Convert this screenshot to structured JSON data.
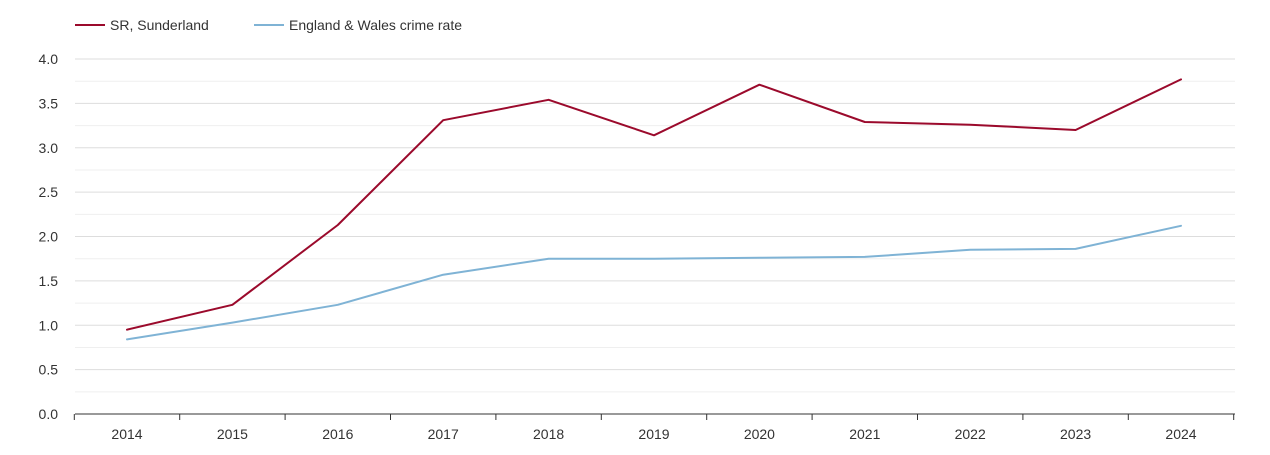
{
  "chart_data": {
    "type": "line",
    "x": [
      "2014",
      "2015",
      "2016",
      "2017",
      "2018",
      "2019",
      "2020",
      "2021",
      "2022",
      "2023",
      "2024"
    ],
    "series": [
      {
        "name": "SR, Sunderland",
        "color": "#9b0a2c",
        "values": [
          0.95,
          1.23,
          2.13,
          3.31,
          3.54,
          3.14,
          3.71,
          3.29,
          3.26,
          3.2,
          3.77
        ]
      },
      {
        "name": "England & Wales crime rate",
        "color": "#7fb3d5",
        "values": [
          0.84,
          1.03,
          1.23,
          1.57,
          1.75,
          1.75,
          1.76,
          1.77,
          1.85,
          1.86,
          2.12
        ]
      }
    ],
    "ylim": [
      0,
      4.0
    ],
    "yticks": [
      "0.0",
      "0.5",
      "1.0",
      "1.5",
      "2.0",
      "2.5",
      "3.0",
      "3.5",
      "4.0"
    ],
    "grid": true,
    "legend_position": "top-left"
  }
}
